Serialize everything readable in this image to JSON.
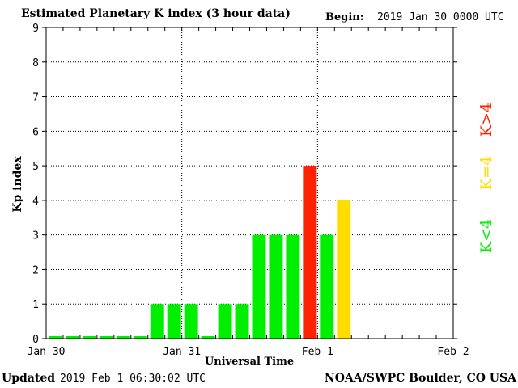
{
  "header": {
    "begin_label": "Begin:",
    "begin_value": "2019 Jan 30 0000 UTC"
  },
  "footer": {
    "updated_label": "Updated",
    "updated_value": "2019 Feb  1 06:30:02 UTC",
    "credit": "NOAA/SWPC Boulder, CO USA"
  },
  "legend": {
    "high": "K>4",
    "mid": "K=4",
    "low": "K<4"
  },
  "colors": {
    "green": "#00ee00",
    "yellow": "#ffdd00",
    "red": "#ff2200"
  },
  "chart_data": {
    "type": "bar",
    "title": "Estimated Planetary K index (3 hour data)",
    "xlabel": "Universal Time",
    "ylabel": "Kp index",
    "ylim": [
      0,
      9
    ],
    "yticks": [
      "0",
      "1",
      "2",
      "3",
      "4",
      "5",
      "6",
      "7",
      "8",
      "9"
    ],
    "xticks": [
      "Jan 30",
      "Jan 31",
      "Feb 1",
      "Feb 2"
    ],
    "grid": true,
    "categories": [
      "Jan 30 00-03",
      "Jan 30 03-06",
      "Jan 30 06-09",
      "Jan 30 09-12",
      "Jan 30 12-15",
      "Jan 30 15-18",
      "Jan 30 18-21",
      "Jan 30 21-24",
      "Jan 31 00-03",
      "Jan 31 03-06",
      "Jan 31 06-09",
      "Jan 31 09-12",
      "Jan 31 12-15",
      "Jan 31 15-18",
      "Jan 31 18-21",
      "Jan 31 21-24",
      "Feb 1 00-03",
      "Feb 1 03-06"
    ],
    "values": [
      0,
      0,
      0,
      0,
      0,
      0,
      1,
      1,
      1,
      0,
      1,
      1,
      3,
      3,
      3,
      5,
      3,
      4
    ],
    "bar_colors": [
      "green",
      "green",
      "green",
      "green",
      "green",
      "green",
      "green",
      "green",
      "green",
      "green",
      "green",
      "green",
      "green",
      "green",
      "green",
      "red",
      "green",
      "yellow"
    ]
  }
}
